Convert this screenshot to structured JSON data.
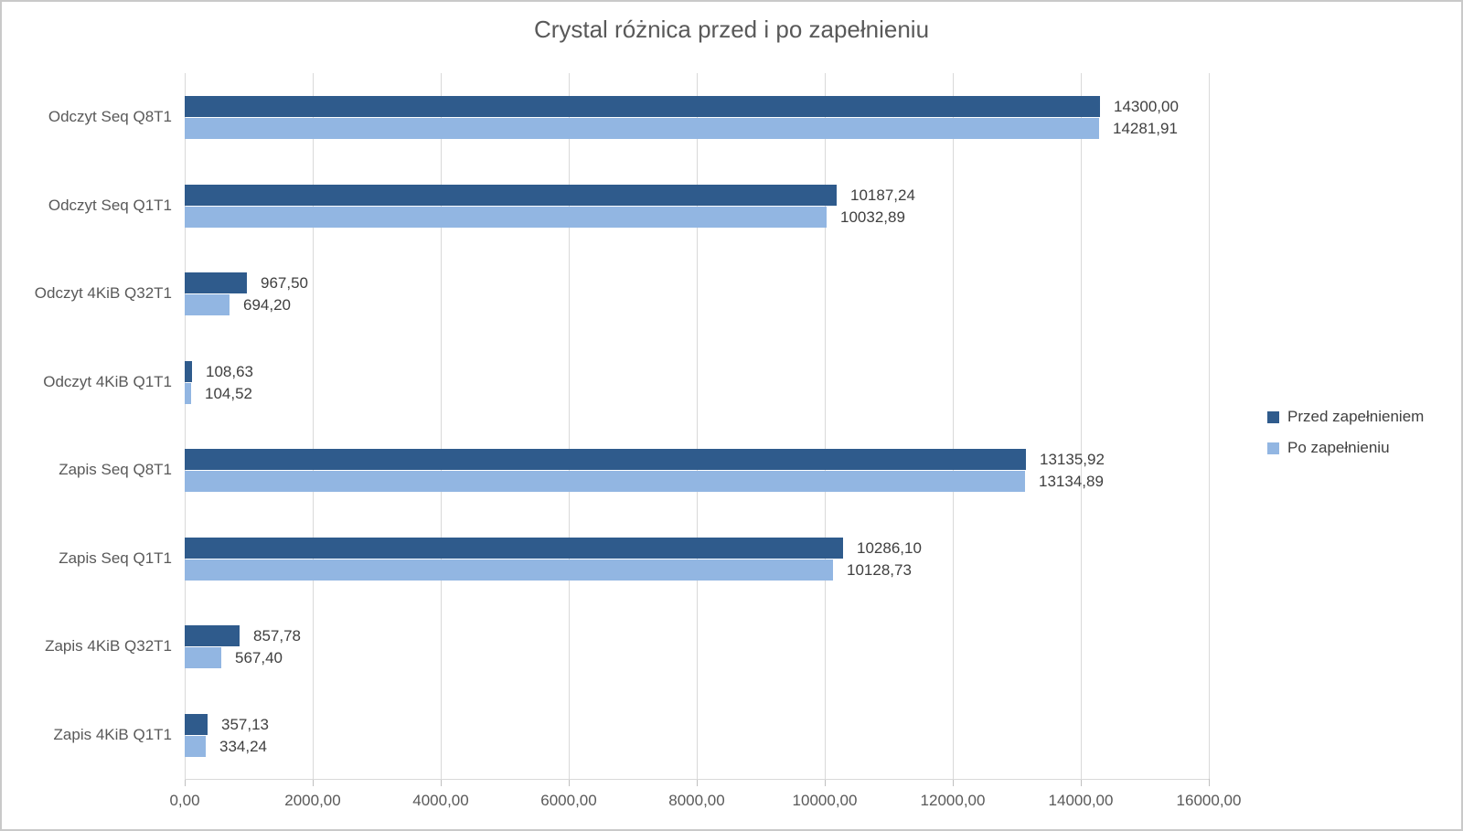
{
  "chart_data": {
    "type": "bar",
    "orientation": "horizontal",
    "title": "Crystal różnica przed i po zapełnieniu",
    "categories": [
      "Odczyt Seq Q8T1",
      "Odczyt Seq Q1T1",
      "Odczyt 4KiB Q32T1",
      "Odczyt 4KiB Q1T1",
      "Zapis Seq Q8T1",
      "Zapis Seq Q1T1",
      "Zapis 4KiB Q32T1",
      "Zapis 4KiB Q1T1"
    ],
    "series": [
      {
        "name": "Przed zapełnieniem",
        "color": "#2F5B8C",
        "values": [
          14300.0,
          10187.24,
          967.5,
          108.63,
          13135.92,
          10286.1,
          857.78,
          357.13
        ],
        "labels": [
          "14300,00",
          "10187,24",
          "967,50",
          "108,63",
          "13135,92",
          "10286,10",
          "857,78",
          "357,13"
        ]
      },
      {
        "name": "Po zapełnieniu",
        "color": "#92B6E2",
        "values": [
          14281.91,
          10032.89,
          694.2,
          104.52,
          13134.89,
          10128.73,
          567.4,
          334.24
        ],
        "labels": [
          "14281,91",
          "10032,89",
          "694,20",
          "104,52",
          "13134,89",
          "10128,73",
          "567,40",
          "334,24"
        ]
      }
    ],
    "xlim": [
      0,
      16000
    ],
    "x_ticks": [
      "0,00",
      "2000,00",
      "4000,00",
      "6000,00",
      "8000,00",
      "10000,00",
      "12000,00",
      "14000,00",
      "16000,00"
    ],
    "grid": true,
    "legend_position": "right",
    "colors": {
      "gridline": "#d9d9d9",
      "tick": "#bfbfbf",
      "axis_text": "#595959",
      "value_label_text": "#3f3f3f",
      "title_text": "#595959",
      "background": "#ffffff"
    }
  }
}
